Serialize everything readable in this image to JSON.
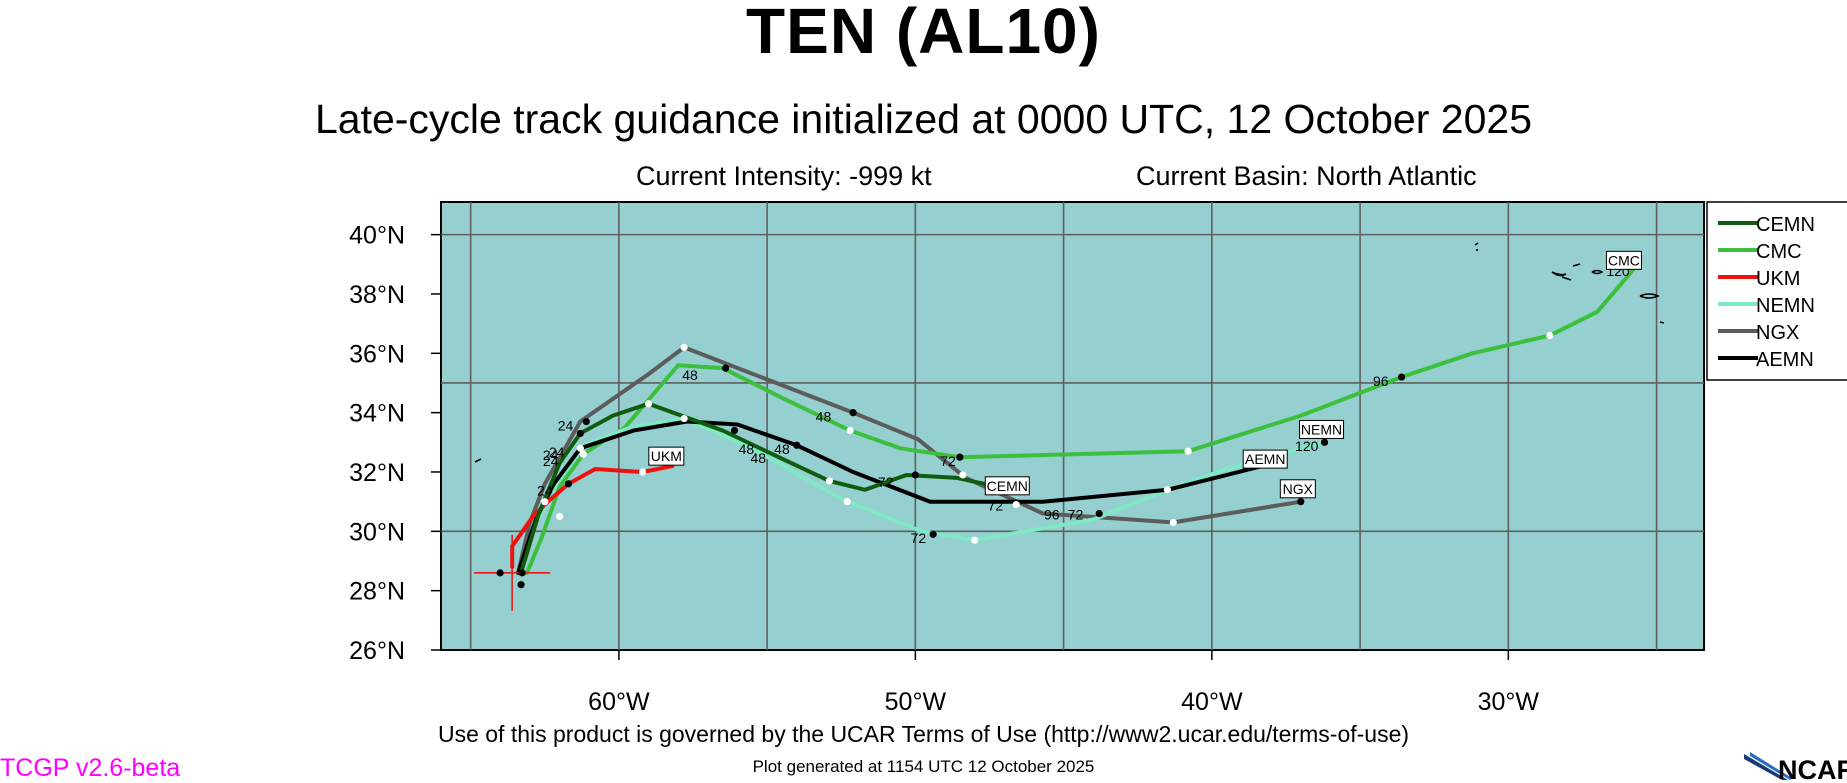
{
  "header": {
    "title": "TEN (AL10)",
    "subtitle": "Late-cycle track guidance initialized at 0000 UTC, 12 October 2025",
    "intensity": "Current Intensity: -999 kt",
    "basin": "Current Basin: North Atlantic"
  },
  "footer": {
    "terms": "Use of this product is governed by the UCAR Terms of Use (http://www2.ucar.edu/terms-of-use)",
    "generated": "Plot generated at 1154 UTC   12 October 2025",
    "version": "TCGP v2.6-beta",
    "logo": "NCAR"
  },
  "colors": {
    "ocean": "#96cfcf",
    "grid": "#5f5f5f",
    "CEMN": "#0f5c0f",
    "CMC": "#3cbf3c",
    "UKM": "#ee1111",
    "NEMN": "#7fe8c4",
    "NGX": "#5c5c5c",
    "AEMN": "#000000",
    "version": "#ff00ff"
  },
  "chart_data": {
    "type": "line",
    "xaxis": {
      "ticks": [
        "60°W",
        "50°W",
        "40°W",
        "30°W"
      ],
      "values": [
        -60,
        -50,
        -40,
        -30
      ],
      "range": [
        -66.0,
        -23.4
      ]
    },
    "yaxis": {
      "ticks": [
        "26°N",
        "28°N",
        "30°N",
        "32°N",
        "34°N",
        "36°N",
        "38°N",
        "40°N"
      ],
      "values": [
        26,
        28,
        30,
        32,
        34,
        36,
        38,
        40
      ],
      "range": [
        26,
        41.1
      ]
    },
    "legend_position": "right",
    "current_position": {
      "lon": -63.6,
      "lat": 28.6
    },
    "series": [
      {
        "name": "CEMN",
        "track": [
          [
            -63.3,
            28.6
          ],
          [
            -62.7,
            30.6
          ],
          [
            -62.0,
            32.3
          ],
          [
            -61.3,
            33.3
          ],
          [
            -60.2,
            33.9
          ],
          [
            -59.0,
            34.3
          ],
          [
            -56.5,
            33.4
          ],
          [
            -54.4,
            32.4
          ],
          [
            -52.9,
            31.7
          ],
          [
            -51.7,
            31.4
          ],
          [
            -50.3,
            31.9
          ],
          [
            -48.6,
            31.8
          ],
          [
            -47.2,
            31.5
          ]
        ],
        "dots": [
          [
            -61.3,
            33.3,
            "b"
          ],
          [
            -59.0,
            34.3,
            "w"
          ],
          [
            -56.1,
            33.4,
            "b"
          ],
          [
            -52.9,
            31.7,
            "w"
          ],
          [
            -50.0,
            31.9,
            "b"
          ]
        ],
        "labels": [
          [
            -62.1,
            32.5,
            "24"
          ],
          [
            -55.7,
            32.6,
            "48"
          ],
          [
            -51.0,
            31.5,
            "72"
          ]
        ],
        "tag": {
          "text": "CEMN",
          "lon": -46.9,
          "lat": 31.5
        }
      },
      {
        "name": "CMC",
        "track": [
          [
            -63.1,
            28.6
          ],
          [
            -62.6,
            29.8
          ],
          [
            -62.0,
            31.5
          ],
          [
            -61.2,
            32.6
          ],
          [
            -59.8,
            33.5
          ],
          [
            -58.0,
            35.6
          ],
          [
            -56.5,
            35.5
          ],
          [
            -54.5,
            34.5
          ],
          [
            -52.2,
            33.4
          ],
          [
            -50.5,
            32.8
          ],
          [
            -48.5,
            32.5
          ],
          [
            -40.8,
            32.7
          ],
          [
            -37.0,
            33.9
          ],
          [
            -33.6,
            35.2
          ],
          [
            -31.2,
            36.0
          ],
          [
            -28.6,
            36.6
          ],
          [
            -27.0,
            37.4
          ],
          [
            -25.8,
            38.8
          ]
        ],
        "dots": [
          [
            -61.2,
            32.6,
            "w"
          ],
          [
            -56.4,
            35.5,
            "b"
          ],
          [
            -52.2,
            33.4,
            "w"
          ],
          [
            -48.5,
            32.5,
            "b"
          ],
          [
            -40.8,
            32.7,
            "w"
          ],
          [
            -33.6,
            35.2,
            "b"
          ],
          [
            -28.6,
            36.6,
            "w"
          ]
        ],
        "labels": [
          [
            -62.3,
            32.4,
            "24"
          ],
          [
            -57.6,
            35.1,
            "48"
          ],
          [
            -48.9,
            32.2,
            "72"
          ],
          [
            -34.3,
            34.9,
            "96"
          ],
          [
            -26.3,
            38.6,
            "120"
          ]
        ],
        "tag": {
          "text": "CMC",
          "lon": -26.1,
          "lat": 39.1
        }
      },
      {
        "name": "UKM",
        "track": [
          [
            -63.6,
            28.8
          ],
          [
            -63.6,
            29.5
          ],
          [
            -62.9,
            30.5
          ],
          [
            -62.4,
            31.0
          ],
          [
            -61.7,
            31.6
          ],
          [
            -60.8,
            32.1
          ],
          [
            -59.2,
            32.0
          ],
          [
            -58.2,
            32.2
          ]
        ],
        "dots": [
          [
            -61.7,
            31.6,
            "b"
          ],
          [
            -59.2,
            32.0,
            "w"
          ]
        ],
        "labels": [],
        "tag": {
          "text": "UKM",
          "lon": -58.4,
          "lat": 32.5
        }
      },
      {
        "name": "NEMN",
        "track": [
          [
            -63.3,
            28.6
          ],
          [
            -62.8,
            30.3
          ],
          [
            -62.1,
            31.6
          ],
          [
            -61.2,
            32.9
          ],
          [
            -59.6,
            33.5
          ],
          [
            -57.8,
            33.8
          ],
          [
            -55.5,
            32.8
          ],
          [
            -52.5,
            31.1
          ],
          [
            -49.8,
            30.0
          ],
          [
            -48.0,
            29.7
          ],
          [
            -44.0,
            30.4
          ],
          [
            -41.5,
            31.4
          ],
          [
            -39.5,
            32.1
          ],
          [
            -36.2,
            33.0
          ]
        ],
        "dots": [
          [
            -62.0,
            30.5,
            "w"
          ],
          [
            -57.8,
            33.8,
            "w"
          ],
          [
            -52.3,
            31.0,
            "w"
          ],
          [
            -48.0,
            29.7,
            "w"
          ],
          [
            -41.5,
            31.4,
            "w"
          ],
          [
            -36.2,
            33.0,
            "b"
          ]
        ],
        "labels": [
          [
            -62.5,
            31.2,
            "24"
          ],
          [
            -55.3,
            32.3,
            "48"
          ],
          [
            -49.9,
            29.6,
            "72"
          ],
          [
            -36.8,
            32.7,
            "120"
          ]
        ],
        "tag": {
          "text": "NEMN",
          "lon": -36.3,
          "lat": 33.4
        }
      },
      {
        "name": "NGX",
        "track": [
          [
            -63.4,
            28.6
          ],
          [
            -63.0,
            30.3
          ],
          [
            -62.5,
            31.6
          ],
          [
            -61.3,
            33.7
          ],
          [
            -59.0,
            35.3
          ],
          [
            -57.8,
            36.2
          ],
          [
            -52.1,
            34.0
          ],
          [
            -49.9,
            33.1
          ],
          [
            -48.3,
            31.8
          ],
          [
            -45.7,
            30.6
          ],
          [
            -41.3,
            30.3
          ],
          [
            -37.0,
            31.0
          ]
        ],
        "dots": [
          [
            -62.5,
            31.0,
            "w"
          ],
          [
            -61.1,
            33.7,
            "b"
          ],
          [
            -57.8,
            36.2,
            "w"
          ],
          [
            -52.1,
            34.0,
            "b"
          ],
          [
            -48.4,
            31.9,
            "w"
          ],
          [
            -41.3,
            30.3,
            "w"
          ],
          [
            -37.0,
            31.0,
            "b"
          ]
        ],
        "labels": [
          [
            -61.8,
            33.4,
            "24"
          ],
          [
            -53.1,
            33.7,
            "48"
          ],
          [
            -45.4,
            30.4,
            "96"
          ]
        ],
        "tag": {
          "text": "NGX",
          "lon": -37.1,
          "lat": 31.4
        }
      },
      {
        "name": "AEMN",
        "track": [
          [
            -63.4,
            28.6
          ],
          [
            -62.8,
            30.4
          ],
          [
            -62.2,
            31.6
          ],
          [
            -61.3,
            32.8
          ],
          [
            -59.5,
            33.4
          ],
          [
            -57.7,
            33.7
          ],
          [
            -56.0,
            33.6
          ],
          [
            -54.0,
            32.9
          ],
          [
            -52.1,
            32.0
          ],
          [
            -49.5,
            31.0
          ],
          [
            -45.7,
            31.0
          ],
          [
            -41.5,
            31.4
          ],
          [
            -37.9,
            32.3
          ]
        ],
        "dots": [
          [
            -63.3,
            28.2,
            "b"
          ],
          [
            -61.3,
            32.8,
            "w"
          ],
          [
            -54.0,
            32.9,
            "b"
          ],
          [
            -49.4,
            29.9,
            "b"
          ],
          [
            -46.6,
            30.9,
            "w"
          ],
          [
            -43.8,
            30.6,
            "b"
          ]
        ],
        "labels": [
          [
            -62.3,
            32.2,
            "24"
          ],
          [
            -54.5,
            32.6,
            "48"
          ],
          [
            -47.3,
            30.7,
            "72"
          ],
          [
            -44.6,
            30.4,
            "72"
          ]
        ],
        "tag": {
          "text": "AEMN",
          "lon": -38.2,
          "lat": 32.4
        }
      }
    ]
  }
}
